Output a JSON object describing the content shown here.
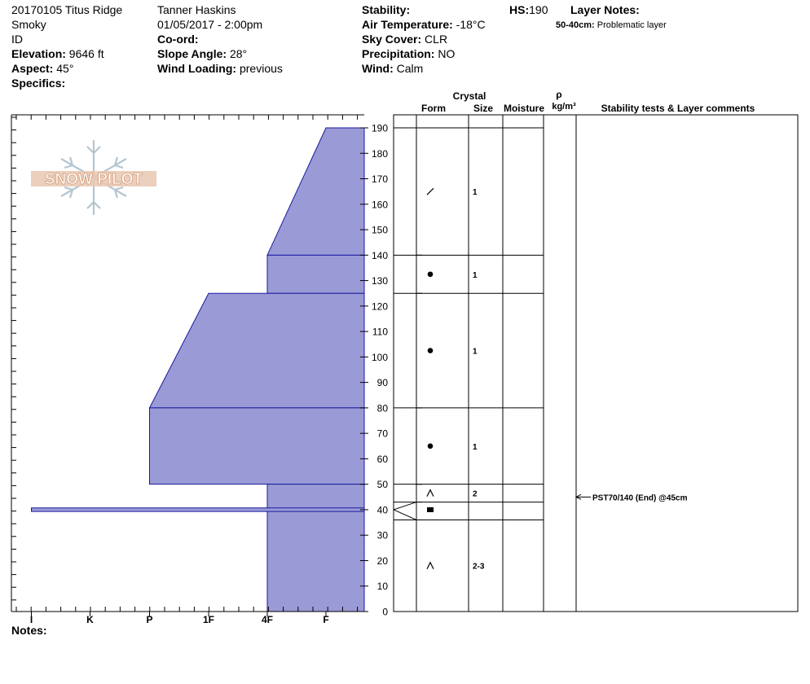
{
  "header": {
    "site": "20170105 Titus Ridge",
    "range": "Smoky",
    "state": "ID",
    "elevation_label": "Elevation:",
    "elevation": "9646 ft",
    "aspect_label": "Aspect:",
    "aspect": "45°",
    "specifics_label": "Specifics:",
    "observer": "Tanner Haskins",
    "datetime": "01/05/2017 - 2:00pm",
    "coord_label": "Co-ord:",
    "slope_label": "Slope Angle:",
    "slope": "28°",
    "wind_loading_label": "Wind Loading:",
    "wind_loading": "previous",
    "stability_label": "Stability:",
    "air_temp_label": "Air Temperature:",
    "air_temp": "-18°C",
    "sky_label": "Sky Cover:",
    "sky": "CLR",
    "precip_label": "Precipitation:",
    "precip": "NO",
    "wind_label": "Wind:",
    "wind": "Calm",
    "hs_label": "HS:",
    "hs": "190",
    "layer_notes_label": "Layer Notes:",
    "layer_note_depth": "50-40cm:",
    "layer_note_text": "Problematic layer"
  },
  "notes_label": "Notes:",
  "logo_text": "SNOW PILOT",
  "columns": {
    "crystal": "Crystal",
    "form": "Form",
    "size": "Size",
    "moisture": "Moisture",
    "rho": "ρ",
    "density_unit": "kg/m³",
    "stability": "Stability tests & Layer comments"
  },
  "colors": {
    "fill": "#9a9ad6",
    "stroke": "#1a1aa0"
  },
  "chart_data": {
    "type": "area",
    "xlabel": "",
    "ylabel": "",
    "hardness_ticks": [
      "I",
      "K",
      "P",
      "1F",
      "4F",
      "F"
    ],
    "depth_ticks": [
      0,
      10,
      20,
      30,
      40,
      50,
      60,
      70,
      80,
      90,
      100,
      110,
      120,
      130,
      140,
      150,
      160,
      170,
      180,
      190
    ],
    "ylim": [
      0,
      195
    ],
    "hardness_profile": [
      {
        "bottom": 140,
        "top": 190,
        "hardness_bottom": "4F",
        "hardness_top": "F"
      },
      {
        "bottom": 125,
        "top": 140,
        "hardness_bottom": "4F",
        "hardness_top": "4F"
      },
      {
        "bottom": 80,
        "top": 125,
        "hardness_bottom": "P",
        "hardness_top": "1F"
      },
      {
        "bottom": 50,
        "top": 80,
        "hardness_bottom": "P",
        "hardness_top": "P"
      },
      {
        "bottom": 0,
        "top": 50,
        "hardness_bottom": "4F",
        "hardness_top": "4F"
      },
      {
        "bottom": 39.3,
        "top": 40.7,
        "hardness_bottom": "I",
        "hardness_top": "I"
      }
    ],
    "layer_boundaries": [
      190,
      140,
      125,
      80,
      50,
      43,
      36,
      0
    ],
    "layers": [
      {
        "depth": 165,
        "form": "DF",
        "size": "1"
      },
      {
        "depth": 132.5,
        "form": "PP",
        "size": "1"
      },
      {
        "depth": 102.5,
        "form": "PP",
        "size": "1"
      },
      {
        "depth": 65,
        "form": "PP",
        "size": "1"
      },
      {
        "depth": 46.5,
        "form": "FC",
        "size": "2"
      },
      {
        "depth": 40,
        "form": "MF",
        "size": ""
      },
      {
        "depth": 18,
        "form": "FC",
        "size": "2-3"
      }
    ],
    "tests": [
      {
        "depth": 45,
        "label": "PST70/140 (End) @45cm"
      }
    ]
  }
}
